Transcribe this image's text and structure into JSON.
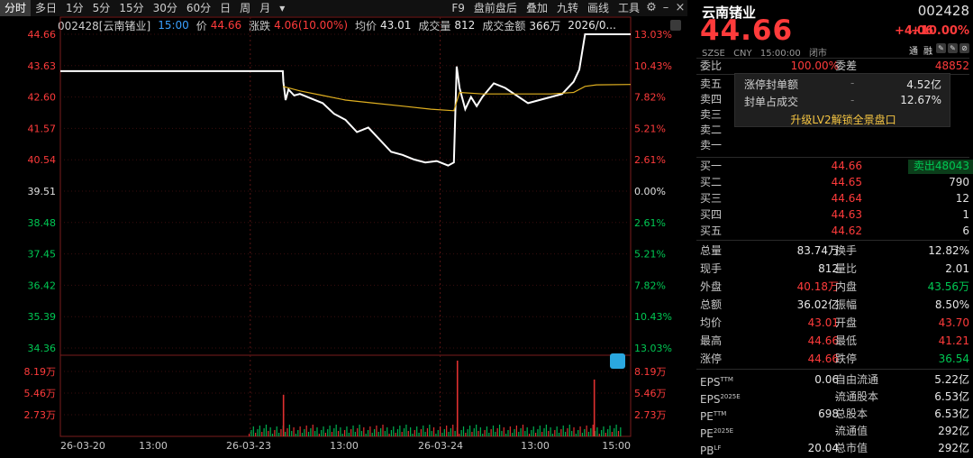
{
  "toolbar": {
    "tabs": [
      "分时",
      "多日",
      "1分",
      "5分",
      "15分",
      "30分",
      "60分",
      "日",
      "周",
      "月"
    ],
    "dropdown": "▾",
    "tools": [
      "F9",
      "盘前盘后",
      "叠加",
      "九转",
      "画线",
      "工具"
    ]
  },
  "infobar": {
    "code": "002428[云南锗业]",
    "time": "15:00",
    "price_label": "价",
    "price": "44.66",
    "chg_label": "涨跌",
    "chg": "4.06(10.00%)",
    "avg_label": "均价",
    "avg": "43.01",
    "vol_label": "成交量",
    "vol": "812",
    "amt_label": "成交金额",
    "amt": "366万",
    "date": "2026/0..."
  },
  "chart_data": {
    "type": "line",
    "y_left_ticks": [
      "44.66",
      "43.63",
      "42.60",
      "41.57",
      "40.54",
      "39.51",
      "38.48",
      "37.45",
      "36.42",
      "35.39",
      "34.36"
    ],
    "y_right_ticks": [
      "13.03%",
      "10.43%",
      "7.82%",
      "5.21%",
      "2.61%",
      "0.00%",
      "2.61%",
      "5.21%",
      "7.82%",
      "10.43%",
      "13.03%"
    ],
    "vol_ticks": [
      "8.19万",
      "5.46万",
      "2.73万"
    ],
    "x_ticks": [
      "26-03-20",
      "13:00",
      "26-03-23",
      "13:00",
      "26-03-24",
      "13:00",
      "15:00"
    ],
    "ylim": [
      34.36,
      44.66
    ],
    "prev_close": 39.51,
    "series": [
      {
        "name": "价",
        "x": [
          0,
          0.39,
          0.391,
          0.395,
          0.4,
          0.41,
          0.42,
          0.44,
          0.46,
          0.48,
          0.5,
          0.52,
          0.54,
          0.56,
          0.58,
          0.6,
          0.62,
          0.64,
          0.66,
          0.68,
          0.69,
          0.695,
          0.7,
          0.71,
          0.72,
          0.73,
          0.74,
          0.76,
          0.78,
          0.8,
          0.82,
          0.84,
          0.86,
          0.88,
          0.9,
          0.91,
          0.92,
          0.93,
          0.94,
          1.0
        ],
        "y": [
          43.45,
          43.45,
          43.1,
          42.5,
          42.85,
          42.65,
          42.7,
          42.55,
          42.4,
          42.05,
          41.85,
          41.45,
          41.6,
          41.2,
          40.8,
          40.7,
          40.55,
          40.45,
          40.5,
          40.35,
          40.45,
          43.6,
          42.9,
          42.2,
          42.6,
          42.3,
          42.6,
          43.05,
          42.9,
          42.65,
          42.4,
          42.5,
          42.6,
          42.7,
          43.1,
          43.5,
          44.66,
          44.66,
          44.66,
          44.66
        ]
      },
      {
        "name": "均价",
        "x": [
          0.39,
          0.42,
          0.46,
          0.5,
          0.55,
          0.6,
          0.65,
          0.69,
          0.7,
          0.74,
          0.8,
          0.86,
          0.9,
          0.92,
          0.94,
          1.0
        ],
        "y": [
          42.95,
          42.8,
          42.65,
          42.5,
          42.4,
          42.3,
          42.2,
          42.15,
          42.75,
          42.7,
          42.7,
          42.7,
          42.75,
          42.95,
          43.0,
          43.01
        ]
      }
    ],
    "volume_spikes": [
      {
        "x": 0.39,
        "v": 0.55
      },
      {
        "x": 0.695,
        "v": 1.0
      },
      {
        "x": 0.935,
        "v": 0.75
      }
    ]
  },
  "panel": {
    "name": "云南锗业",
    "code": "002428",
    "price": "44.66",
    "chg": "+4.06",
    "chgpct": "+10.00%",
    "meta": [
      "SZSE",
      "CNY",
      "15:00:00",
      "闭市"
    ],
    "badges": [
      "通",
      "融"
    ],
    "weibi_label": "委比",
    "weibi": "100.00%",
    "weicha_label": "委差",
    "weicha": "48852",
    "asks": [
      {
        "label": "卖五",
        "price": "",
        "qty": ""
      },
      {
        "label": "卖四",
        "price": "",
        "qty": ""
      },
      {
        "label": "卖三",
        "price": "",
        "qty": ""
      },
      {
        "label": "卖二",
        "price": "",
        "qty": ""
      },
      {
        "label": "卖一",
        "price": "",
        "qty": ""
      }
    ],
    "overlay": {
      "r1_label": "涨停封单额",
      "r1_dash": "-",
      "r1_val": "4.52亿",
      "r2_label": "封单占成交",
      "r2_dash": "-",
      "r2_val": "12.67%",
      "cta": "升级LV2解锁全景盘口"
    },
    "bids": [
      {
        "label": "买一",
        "price": "44.66",
        "qty": "卖出48043"
      },
      {
        "label": "买二",
        "price": "44.65",
        "qty": "790"
      },
      {
        "label": "买三",
        "price": "44.64",
        "qty": "12"
      },
      {
        "label": "买四",
        "price": "44.63",
        "qty": "1"
      },
      {
        "label": "买五",
        "price": "44.62",
        "qty": "6"
      }
    ],
    "stats": [
      {
        "l1": "总量",
        "v1": "83.74万",
        "c1": "white",
        "l2": "换手",
        "v2": "12.82%",
        "c2": "white"
      },
      {
        "l1": "现手",
        "v1": "812",
        "c1": "white",
        "l2": "量比",
        "v2": "2.01",
        "c2": "white"
      },
      {
        "l1": "外盘",
        "v1": "40.18万",
        "c1": "red",
        "l2": "内盘",
        "v2": "43.56万",
        "c2": "green"
      },
      {
        "l1": "总额",
        "v1": "36.02亿",
        "c1": "white",
        "l2": "振幅",
        "v2": "8.50%",
        "c2": "white"
      },
      {
        "l1": "均价",
        "v1": "43.01",
        "c1": "red",
        "l2": "开盘",
        "v2": "43.70",
        "c2": "red"
      },
      {
        "l1": "最高",
        "v1": "44.66",
        "c1": "red",
        "l2": "最低",
        "v2": "41.21",
        "c2": "red"
      },
      {
        "l1": "涨停",
        "v1": "44.66",
        "c1": "red",
        "l2": "跌停",
        "v2": "36.54",
        "c2": "green"
      }
    ],
    "fundamentals": [
      {
        "l1": "EPS",
        "s1": "TTM",
        "v1": "0.06",
        "l2": "自由流通",
        "v2": "5.22亿"
      },
      {
        "l1": "EPS",
        "s1": "2025E",
        "v1": "-",
        "l2": "流通股本",
        "v2": "6.53亿"
      },
      {
        "l1": "PE",
        "s1": "TTM",
        "v1": "698",
        "l2": "总股本",
        "v2": "6.53亿"
      },
      {
        "l1": "PE",
        "s1": "2025E",
        "v1": "-",
        "l2": "流通值",
        "v2": "292亿"
      },
      {
        "l1": "PB",
        "s1": "LF",
        "v1": "20.04",
        "l2": "总市值",
        "v2": "292亿"
      }
    ]
  }
}
